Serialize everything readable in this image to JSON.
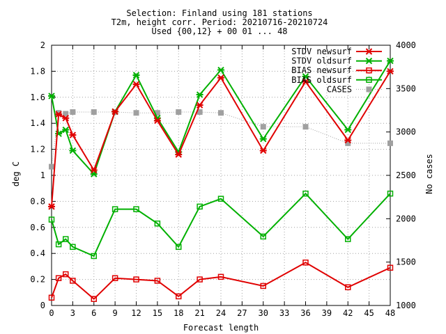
{
  "chart_data": {
    "type": "line",
    "title_lines": [
      "Selection: Finland using   181 stations",
      "T2m, height corr.   Period: 20210716-20210724",
      "Used {00,12} + 00 01 ... 48"
    ],
    "xlabel": "Forecast length",
    "ylabel": "deg C",
    "y2label": "No cases",
    "xlim": [
      0,
      48
    ],
    "ylim": [
      0,
      2
    ],
    "y2lim": [
      1000,
      4000
    ],
    "x_ticks": [
      "0",
      "3",
      "6",
      "9",
      "12",
      "15",
      "18",
      "21",
      "24",
      "27",
      "30",
      "33",
      "36",
      "39",
      "42",
      "45",
      "48"
    ],
    "y_ticks": [
      "0",
      "0.2",
      "0.4",
      "0.6",
      "0.8",
      "1",
      "1.2",
      "1.4",
      "1.6",
      "1.8",
      "2"
    ],
    "y2_ticks": [
      "1000",
      "1500",
      "2000",
      "2500",
      "3000",
      "3500",
      "4000"
    ],
    "grid": true,
    "legend_position": "top-right",
    "x": [
      0,
      1,
      2,
      3,
      6,
      9,
      12,
      15,
      18,
      21,
      24,
      30,
      36,
      42,
      48
    ],
    "series": [
      {
        "name": "STDV newsurf",
        "color": "#e00000",
        "marker": "asterisk",
        "axis": "left",
        "values": [
          0.76,
          1.47,
          1.44,
          1.31,
          1.04,
          1.49,
          1.7,
          1.42,
          1.16,
          1.54,
          1.75,
          1.19,
          1.72,
          1.27,
          1.8
        ]
      },
      {
        "name": "STDV oldsurf",
        "color": "#00b000",
        "marker": "asterisk",
        "axis": "left",
        "values": [
          1.61,
          1.32,
          1.35,
          1.19,
          1.01,
          1.49,
          1.77,
          1.44,
          1.18,
          1.62,
          1.81,
          1.28,
          1.76,
          1.35,
          1.88
        ]
      },
      {
        "name": "BIAS newsurf",
        "color": "#e00000",
        "marker": "square",
        "axis": "left",
        "values": [
          0.06,
          0.21,
          0.24,
          0.19,
          0.05,
          0.21,
          0.2,
          0.19,
          0.07,
          0.2,
          0.22,
          0.15,
          0.33,
          0.14,
          0.29
        ]
      },
      {
        "name": "BIAS oldsurf",
        "color": "#00b000",
        "marker": "square",
        "axis": "left",
        "values": [
          0.66,
          0.47,
          0.51,
          0.45,
          0.38,
          0.74,
          0.74,
          0.63,
          0.45,
          0.76,
          0.82,
          0.53,
          0.86,
          0.51,
          0.86
        ]
      },
      {
        "name": "CASES",
        "color": "#a0a0a0",
        "marker": "filled-square",
        "axis": "right",
        "values": [
          2600,
          3220,
          3210,
          3230,
          3230,
          3230,
          3220,
          3220,
          3230,
          3230,
          3220,
          3060,
          3060,
          2870,
          2870
        ]
      }
    ]
  }
}
